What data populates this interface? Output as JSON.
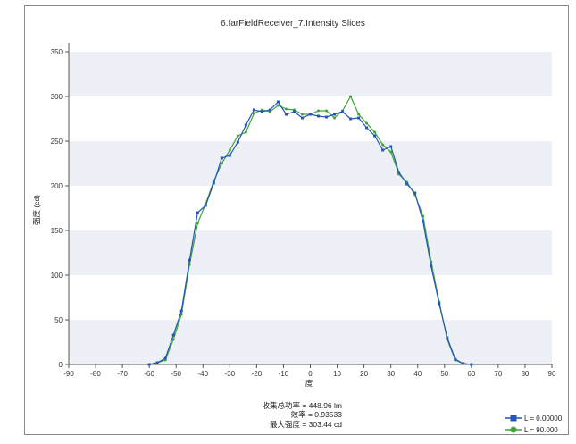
{
  "chart_data": {
    "type": "line",
    "title": "6.farFieldReceiver_7.Intensity Slices",
    "xlabel": "度",
    "ylabel": "强度 (cd)",
    "xlim": [
      -90,
      90
    ],
    "ylim": [
      0,
      360
    ],
    "xticks": [
      -90,
      -80,
      -70,
      -60,
      -50,
      -40,
      -30,
      -20,
      -10,
      0,
      10,
      20,
      30,
      40,
      50,
      60,
      70,
      80,
      90
    ],
    "yticks": [
      0,
      50,
      100,
      150,
      200,
      250,
      300,
      350
    ],
    "x_tick_labels": [
      "-90",
      "-80",
      "-70",
      "-60",
      "-50",
      "-40",
      "-30",
      "-20",
      "-10",
      "0",
      "10",
      "20",
      "30",
      "40",
      "50",
      "60",
      "70",
      "80",
      "90"
    ],
    "y_tick_labels": [
      "0",
      "50",
      "100",
      "150",
      "200",
      "250",
      "300",
      "350"
    ],
    "grid": "horizontal bands",
    "legend_position": "bottom-right",
    "x": [
      -60,
      -57,
      -54,
      -51,
      -48,
      -45,
      -42,
      -39,
      -36,
      -33,
      -30,
      -27,
      -24,
      -21,
      -18,
      -15,
      -12,
      -9,
      -6,
      -3,
      0,
      3,
      6,
      9,
      12,
      15,
      18,
      21,
      24,
      27,
      30,
      33,
      36,
      39,
      42,
      45,
      48,
      51,
      54,
      57,
      60
    ],
    "series": [
      {
        "name": "L = 0.00000",
        "color": "#2455b8",
        "marker": "square",
        "values": [
          0,
          2,
          7,
          33,
          60,
          117,
          170,
          178,
          203,
          231,
          234,
          249,
          268,
          285,
          283,
          285,
          294,
          280,
          283,
          276,
          280,
          278,
          277,
          280,
          283,
          275,
          276,
          265,
          256,
          240,
          244,
          215,
          202,
          192,
          160,
          110,
          68,
          30,
          6,
          1,
          0
        ]
      },
      {
        "name": "L = 90.000",
        "color": "#3fa43c",
        "marker": "circle",
        "values": [
          0,
          2,
          5,
          28,
          56,
          112,
          158,
          180,
          205,
          225,
          240,
          256,
          260,
          281,
          285,
          283,
          290,
          286,
          285,
          280,
          280,
          284,
          284,
          276,
          284,
          300,
          280,
          270,
          260,
          246,
          238,
          213,
          204,
          190,
          166,
          115,
          70,
          28,
          5,
          1,
          0
        ]
      }
    ]
  },
  "stats": {
    "line1": "收集总功率 = 448.96 lm",
    "line2": "效率 = 0.93533",
    "line3": "最大强度 = 303.44 cd"
  }
}
